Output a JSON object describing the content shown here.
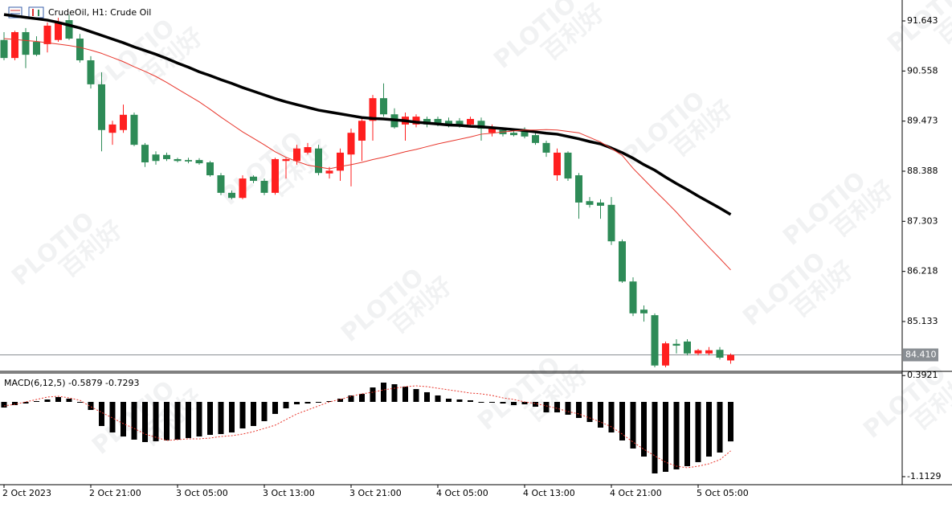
{
  "chart_data": {
    "type": "candlestick",
    "title": "CrudeOil, H1:  Crude Oil",
    "watermark": [
      "PLOTIO",
      "百利好"
    ],
    "categories": [
      "2 Oct 2023",
      null,
      null,
      null,
      null,
      null,
      null,
      null,
      "2 Oct 21:00",
      null,
      null,
      null,
      null,
      null,
      null,
      null,
      "3 Oct 05:00",
      null,
      null,
      null,
      null,
      null,
      null,
      null,
      "3 Oct 13:00",
      null,
      null,
      null,
      null,
      null,
      null,
      null,
      "3 Oct 21:00",
      null,
      null,
      null,
      null,
      null,
      null,
      null,
      "4 Oct 05:00",
      null,
      null,
      null,
      null,
      null,
      null,
      null,
      "4 Oct 13:00",
      null,
      null,
      null,
      null,
      null,
      null,
      null,
      "4 Oct 21:00",
      null,
      null,
      null,
      null,
      null,
      null,
      null,
      "5 Oct 05:00",
      null,
      null,
      null
    ],
    "open": [
      91.23,
      90.84,
      91.4,
      91.19,
      91.14,
      91.23,
      91.66,
      91.26,
      90.79,
      90.27,
      89.22,
      89.28,
      89.61,
      88.96,
      88.75,
      88.74,
      88.65,
      88.63,
      88.63,
      88.58,
      88.3,
      87.92,
      87.81,
      88.27,
      88.18,
      87.92,
      88.61,
      88.61,
      88.79,
      88.88,
      88.34,
      88.4,
      88.75,
      89.05,
      89.48,
      89.97,
      89.62,
      89.4,
      89.4,
      89.52,
      89.52,
      89.48,
      89.48,
      89.4,
      89.48,
      89.22,
      89.28,
      89.22,
      89.28,
      89.17,
      89.0,
      88.3,
      88.79,
      88.3,
      87.74,
      87.71,
      87.66,
      86.87,
      86.0,
      85.39,
      85.27,
      84.18,
      84.65,
      84.7,
      84.44,
      84.44,
      84.52,
      84.29
    ],
    "high": [
      91.4,
      91.43,
      91.49,
      91.31,
      91.61,
      91.71,
      91.78,
      91.36,
      90.88,
      90.53,
      89.48,
      89.83,
      89.66,
      89.0,
      88.82,
      88.79,
      88.68,
      88.68,
      88.67,
      88.61,
      88.35,
      87.97,
      88.3,
      88.3,
      88.23,
      88.68,
      88.68,
      88.96,
      89.0,
      88.96,
      88.48,
      88.88,
      89.31,
      89.57,
      90.04,
      90.29,
      89.75,
      89.66,
      89.62,
      89.57,
      89.57,
      89.55,
      89.54,
      89.57,
      89.55,
      89.4,
      89.34,
      89.31,
      89.34,
      89.22,
      89.05,
      88.88,
      88.82,
      88.35,
      87.83,
      87.78,
      87.83,
      86.91,
      86.09,
      85.48,
      85.31,
      84.7,
      84.75,
      84.75,
      84.54,
      84.58,
      84.58,
      84.44
    ],
    "low": [
      90.79,
      90.79,
      90.62,
      90.88,
      90.96,
      91.19,
      91.23,
      90.74,
      90.18,
      88.82,
      88.96,
      89.22,
      88.93,
      88.48,
      88.53,
      88.61,
      88.58,
      88.56,
      88.53,
      88.27,
      87.87,
      87.78,
      87.78,
      88.13,
      87.87,
      87.88,
      88.23,
      88.53,
      88.75,
      88.3,
      88.23,
      88.18,
      88.06,
      88.61,
      89.05,
      89.57,
      89.31,
      89.05,
      89.34,
      89.34,
      89.36,
      89.34,
      89.33,
      89.34,
      89.05,
      89.14,
      89.14,
      89.14,
      89.1,
      88.96,
      88.7,
      88.18,
      88.18,
      87.36,
      87.6,
      87.36,
      86.79,
      85.97,
      85.25,
      85.13,
      84.14,
      84.14,
      84.44,
      84.4,
      84.4,
      84.4,
      84.31,
      84.22
    ],
    "close": [
      90.84,
      91.4,
      90.91,
      90.91,
      91.54,
      91.61,
      91.26,
      90.79,
      90.27,
      89.28,
      89.4,
      89.61,
      88.96,
      88.58,
      88.61,
      88.65,
      88.61,
      88.6,
      88.56,
      88.3,
      87.92,
      87.81,
      88.23,
      88.18,
      87.92,
      88.65,
      88.65,
      88.88,
      88.91,
      88.35,
      88.4,
      88.79,
      89.22,
      89.48,
      89.97,
      89.62,
      89.34,
      89.57,
      89.57,
      89.4,
      89.4,
      89.4,
      89.38,
      89.52,
      89.31,
      89.31,
      89.19,
      89.17,
      89.14,
      89.0,
      88.79,
      88.79,
      88.23,
      87.71,
      87.66,
      87.64,
      86.87,
      86.0,
      85.31,
      85.31,
      84.18,
      84.66,
      84.61,
      84.44,
      84.51,
      84.51,
      84.35,
      84.41
    ],
    "up_color": "#ff1f1f",
    "down_color": "#2e8b57",
    "moving_averages": [
      {
        "color": "#000000",
        "values": [
          91.78,
          91.75,
          91.72,
          91.69,
          91.66,
          91.61,
          91.55,
          91.49,
          91.41,
          91.33,
          91.25,
          91.17,
          91.08,
          91.0,
          90.92,
          90.83,
          90.73,
          90.64,
          90.54,
          90.46,
          90.37,
          90.29,
          90.2,
          90.12,
          90.04,
          89.96,
          89.89,
          89.83,
          89.77,
          89.71,
          89.67,
          89.63,
          89.59,
          89.55,
          89.53,
          89.52,
          89.5,
          89.48,
          89.45,
          89.43,
          89.41,
          89.39,
          89.38,
          89.36,
          89.35,
          89.33,
          89.31,
          89.29,
          89.27,
          89.24,
          89.21,
          89.19,
          89.14,
          89.09,
          89.03,
          88.98,
          88.89,
          88.79,
          88.67,
          88.53,
          88.41,
          88.26,
          88.12,
          87.99,
          87.85,
          87.72,
          87.59,
          87.45
        ]
      },
      {
        "color": "#e8362c",
        "values": [
          91.26,
          91.24,
          91.22,
          91.2,
          91.17,
          91.14,
          91.11,
          91.07,
          91.01,
          90.94,
          90.85,
          90.76,
          90.65,
          90.55,
          90.44,
          90.31,
          90.17,
          90.03,
          89.89,
          89.73,
          89.56,
          89.4,
          89.24,
          89.1,
          88.96,
          88.81,
          88.69,
          88.6,
          88.52,
          88.48,
          88.44,
          88.49,
          88.53,
          88.58,
          88.64,
          88.69,
          88.75,
          88.81,
          88.86,
          88.92,
          88.98,
          89.03,
          89.08,
          89.13,
          89.19,
          89.21,
          89.24,
          89.26,
          89.28,
          89.28,
          89.29,
          89.28,
          89.25,
          89.22,
          89.12,
          89.02,
          88.88,
          88.73,
          88.45,
          88.21,
          87.97,
          87.74,
          87.5,
          87.24,
          86.99,
          86.74,
          86.5,
          86.25
        ]
      }
    ],
    "ylim": [
      84.071,
      92.009
    ],
    "yticks": [
      91.643,
      90.558,
      89.473,
      88.388,
      87.303,
      86.218,
      85.133
    ],
    "last_price": {
      "value": 84.41,
      "label": "84.410"
    },
    "macd": {
      "label": "MACD(6,12,5)",
      "histogram_color": "#000000",
      "signal_color": "#e8362c",
      "histogram": [
        -0.084,
        -0.048,
        -0.024,
        0.012,
        0.036,
        0.072,
        0.048,
        -0.012,
        -0.12,
        -0.359,
        -0.455,
        -0.515,
        -0.562,
        -0.598,
        -0.586,
        -0.574,
        -0.562,
        -0.538,
        -0.515,
        -0.491,
        -0.479,
        -0.455,
        -0.395,
        -0.359,
        -0.287,
        -0.179,
        -0.096,
        -0.036,
        -0.024,
        -0.006,
        0.012,
        0.048,
        0.096,
        0.12,
        0.215,
        0.287,
        0.263,
        0.227,
        0.191,
        0.144,
        0.096,
        0.048,
        0.036,
        0.024,
        -0.006,
        -0.006,
        -0.024,
        -0.048,
        -0.036,
        -0.072,
        -0.156,
        -0.156,
        -0.191,
        -0.239,
        -0.299,
        -0.383,
        -0.455,
        -0.574,
        -0.694,
        -0.814,
        -1.065,
        -1.041,
        -1.005,
        -0.957,
        -0.897,
        -0.814,
        -0.754,
        -0.5879
      ],
      "signal": [
        -0.06,
        -0.036,
        0,
        0.036,
        0.072,
        0.084,
        0.06,
        0.024,
        -0.072,
        -0.156,
        -0.239,
        -0.323,
        -0.395,
        -0.479,
        -0.527,
        -0.574,
        -0.562,
        -0.55,
        -0.55,
        -0.538,
        -0.515,
        -0.503,
        -0.479,
        -0.443,
        -0.395,
        -0.347,
        -0.263,
        -0.179,
        -0.12,
        -0.06,
        0,
        0.036,
        0.084,
        0.12,
        0.144,
        0.179,
        0.203,
        0.227,
        0.239,
        0.227,
        0.203,
        0.179,
        0.156,
        0.132,
        0.12,
        0.096,
        0.06,
        0.036,
        0,
        -0.024,
        -0.06,
        -0.096,
        -0.144,
        -0.179,
        -0.239,
        -0.299,
        -0.371,
        -0.479,
        -0.598,
        -0.706,
        -0.802,
        -0.897,
        -0.957,
        -0.981,
        -0.957,
        -0.921,
        -0.861,
        -0.7293
      ],
      "ylim": [
        -1.2206,
        0.4427
      ],
      "yticks": [
        0.3921,
        -1.1129
      ]
    }
  }
}
